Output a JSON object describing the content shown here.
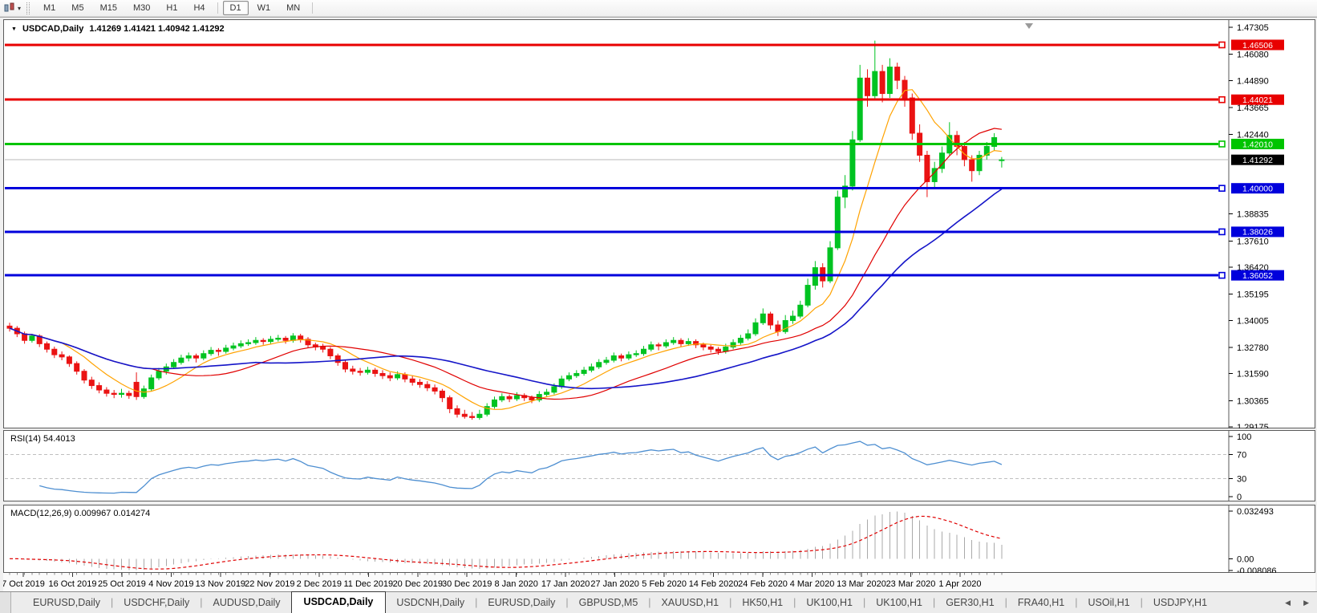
{
  "toolbar": {
    "timeframes": [
      "M1",
      "M5",
      "M15",
      "M30",
      "H1",
      "H4",
      "D1",
      "W1",
      "MN"
    ],
    "active_timeframe": "D1",
    "chart_type_icon": "candlestick-chart-icon"
  },
  "chart_header": {
    "dropdown_caret": "▼",
    "symbol": "USDCAD,Daily",
    "ohlc": "1.41269 1.41421 1.40942 1.41292"
  },
  "price_axis": {
    "ticks": [
      "1.47305",
      "1.46080",
      "1.44890",
      "1.43665",
      "1.42440",
      "1.38835",
      "1.37610",
      "1.36420",
      "1.35195",
      "1.34005",
      "1.32780",
      "1.31590",
      "1.30365",
      "1.29175"
    ]
  },
  "rsi_panel": {
    "label": "RSI(14) 54.4013",
    "ticks": [
      "100",
      "70",
      "30",
      "0"
    ]
  },
  "macd_panel": {
    "label": "MACD(12,26,9) 0.009967 0.014274",
    "ticks": [
      "0.032493",
      "0.00",
      "-0.008086"
    ]
  },
  "date_axis": {
    "labels": [
      "7 Oct 2019",
      "16 Oct 2019",
      "25 Oct 2019",
      "4 Nov 2019",
      "13 Nov 2019",
      "22 Nov 2019",
      "2 Dec 2019",
      "11 Dec 2019",
      "20 Dec 2019",
      "30 Dec 2019",
      "8 Jan 2020",
      "17 Jan 2020",
      "27 Jan 2020",
      "5 Feb 2020",
      "14 Feb 2020",
      "24 Feb 2020",
      "4 Mar 2020",
      "13 Mar 2020",
      "23 Mar 2020",
      "1 Apr 2020"
    ]
  },
  "tab_bar": {
    "scroll_left": "◀",
    "scroll_right": "▶",
    "tabs": [
      {
        "label": "EURUSD,Daily",
        "active": false
      },
      {
        "label": "USDCHF,Daily",
        "active": false
      },
      {
        "label": "AUDUSD,Daily",
        "active": false
      },
      {
        "label": "USDCAD,Daily",
        "active": true
      },
      {
        "label": "USDCNH,Daily",
        "active": false
      },
      {
        "label": "EURUSD,Daily",
        "active": false
      },
      {
        "label": "GBPUSD,M5",
        "active": false
      },
      {
        "label": "XAUUSD,H1",
        "active": false
      },
      {
        "label": "HK50,H1",
        "active": false
      },
      {
        "label": "UK100,H1",
        "active": false
      },
      {
        "label": "UK100,H1",
        "active": false
      },
      {
        "label": "GER30,H1",
        "active": false
      },
      {
        "label": "FRA40,H1",
        "active": false
      },
      {
        "label": "USOil,H1",
        "active": false
      },
      {
        "label": "USDJPY,H1",
        "active": false
      }
    ]
  },
  "chart_data": {
    "type": "candlestick",
    "symbol": "USDCAD",
    "timeframe": "Daily",
    "ohlc_current": {
      "open": 1.41269,
      "high": 1.41421,
      "low": 1.40942,
      "close": 1.41292
    },
    "ylim": [
      1.29,
      1.4766
    ],
    "grid": false,
    "levels": [
      {
        "label": "1.46506",
        "value": 1.46506,
        "color": "#e80000",
        "type": "resistance"
      },
      {
        "label": "1.44021",
        "value": 1.44021,
        "color": "#e80000",
        "type": "resistance"
      },
      {
        "label": "1.42010",
        "value": 1.4201,
        "color": "#00c400",
        "type": "pivot"
      },
      {
        "label": "1.41292",
        "value": 1.41292,
        "color": "#000000",
        "type": "current-price"
      },
      {
        "label": "1.40000",
        "value": 1.4,
        "color": "#0000dc",
        "type": "support"
      },
      {
        "label": "1.38026",
        "value": 1.38026,
        "color": "#0000dc",
        "type": "support"
      },
      {
        "label": "1.36052",
        "value": 1.36052,
        "color": "#0000dc",
        "type": "support"
      }
    ],
    "moving_averages": [
      {
        "name": "fast",
        "period": 8,
        "color": "#ffa200"
      },
      {
        "name": "medium",
        "period": 20,
        "color": "#e00000"
      },
      {
        "name": "slow",
        "period": 34,
        "color": "#1414c8"
      }
    ],
    "candle_colors": {
      "bull": "#00c321",
      "bear": "#ea1313"
    },
    "rsi": {
      "period": 14,
      "current": 54.4013,
      "levels": [
        70,
        30
      ],
      "range": [
        0,
        100
      ],
      "color": "#4e8fd1"
    },
    "macd": {
      "fast": 12,
      "slow": 26,
      "signal_period": 9,
      "current": 0.009967,
      "signal_current": 0.014274,
      "range": [
        -0.008086,
        0.032493
      ],
      "histogram_color": "#a9a9a9",
      "signal_color": "#e00000"
    },
    "candles": [
      [
        1.3375,
        1.339,
        1.335,
        1.3365
      ],
      [
        1.3365,
        1.3375,
        1.3325,
        1.334
      ],
      [
        1.334,
        1.335,
        1.3295,
        1.331
      ],
      [
        1.331,
        1.334,
        1.33,
        1.333
      ],
      [
        1.333,
        1.3338,
        1.328,
        1.3295
      ],
      [
        1.3295,
        1.3305,
        1.3255,
        1.327
      ],
      [
        1.327,
        1.3282,
        1.323,
        1.3245
      ],
      [
        1.3245,
        1.326,
        1.322,
        1.3235
      ],
      [
        1.3235,
        1.3242,
        1.319,
        1.3205
      ],
      [
        1.3205,
        1.3215,
        1.3155,
        1.317
      ],
      [
        1.317,
        1.318,
        1.3115,
        1.313
      ],
      [
        1.313,
        1.3145,
        1.309,
        1.3105
      ],
      [
        1.3105,
        1.312,
        1.307,
        1.3085
      ],
      [
        1.3085,
        1.3098,
        1.3055,
        1.307
      ],
      [
        1.307,
        1.3085,
        1.3048,
        1.3065
      ],
      [
        1.3065,
        1.309,
        1.305,
        1.307
      ],
      [
        1.307,
        1.3082,
        1.3045,
        1.306
      ],
      [
        1.312,
        1.3165,
        1.304,
        1.3055
      ],
      [
        1.3055,
        1.3105,
        1.3045,
        1.309
      ],
      [
        1.309,
        1.3155,
        1.308,
        1.314
      ],
      [
        1.314,
        1.3185,
        1.313,
        1.317
      ],
      [
        1.317,
        1.3205,
        1.3155,
        1.319
      ],
      [
        1.319,
        1.3225,
        1.318,
        1.321
      ],
      [
        1.321,
        1.3245,
        1.32,
        1.323
      ],
      [
        1.323,
        1.3255,
        1.3215,
        1.324
      ],
      [
        1.324,
        1.325,
        1.321,
        1.323
      ],
      [
        1.323,
        1.3265,
        1.322,
        1.325
      ],
      [
        1.325,
        1.328,
        1.324,
        1.3265
      ],
      [
        1.3265,
        1.3275,
        1.324,
        1.326
      ],
      [
        1.326,
        1.329,
        1.325,
        1.3275
      ],
      [
        1.3275,
        1.33,
        1.3265,
        1.3285
      ],
      [
        1.3285,
        1.331,
        1.3275,
        1.3295
      ],
      [
        1.3295,
        1.3315,
        1.3285,
        1.33
      ],
      [
        1.33,
        1.3325,
        1.329,
        1.331
      ],
      [
        1.331,
        1.332,
        1.329,
        1.3305
      ],
      [
        1.3305,
        1.333,
        1.3295,
        1.3315
      ],
      [
        1.3315,
        1.3335,
        1.3305,
        1.332
      ],
      [
        1.332,
        1.333,
        1.3295,
        1.331
      ],
      [
        1.331,
        1.3343,
        1.33,
        1.333
      ],
      [
        1.333,
        1.334,
        1.33,
        1.3315
      ],
      [
        1.3315,
        1.3325,
        1.3275,
        1.329
      ],
      [
        1.329,
        1.33,
        1.3265,
        1.328
      ],
      [
        1.328,
        1.3295,
        1.3255,
        1.327
      ],
      [
        1.327,
        1.328,
        1.3225,
        1.324
      ],
      [
        1.324,
        1.325,
        1.3195,
        1.321
      ],
      [
        1.321,
        1.322,
        1.3165,
        1.318
      ],
      [
        1.318,
        1.3195,
        1.3155,
        1.317
      ],
      [
        1.317,
        1.3185,
        1.315,
        1.3165
      ],
      [
        1.3165,
        1.319,
        1.3155,
        1.3175
      ],
      [
        1.3175,
        1.3185,
        1.3145,
        1.316
      ],
      [
        1.316,
        1.3175,
        1.3135,
        1.315
      ],
      [
        1.315,
        1.3165,
        1.3125,
        1.314
      ],
      [
        1.314,
        1.317,
        1.313,
        1.3155
      ],
      [
        1.3155,
        1.3165,
        1.312,
        1.3135
      ],
      [
        1.3135,
        1.315,
        1.3105,
        1.312
      ],
      [
        1.312,
        1.3135,
        1.3095,
        1.311
      ],
      [
        1.311,
        1.3125,
        1.308,
        1.3095
      ],
      [
        1.3095,
        1.311,
        1.3065,
        1.308
      ],
      [
        1.308,
        1.309,
        1.303,
        1.305
      ],
      [
        1.305,
        1.306,
        1.298,
        1.3
      ],
      [
        1.3,
        1.3015,
        1.296,
        1.2975
      ],
      [
        1.2975,
        1.2995,
        1.2955,
        1.2965
      ],
      [
        1.2965,
        1.2985,
        1.295,
        1.296
      ],
      [
        1.296,
        1.2995,
        1.295,
        1.2975
      ],
      [
        1.2975,
        1.3025,
        1.2965,
        1.301
      ],
      [
        1.301,
        1.3055,
        1.3,
        1.304
      ],
      [
        1.304,
        1.307,
        1.303,
        1.3055
      ],
      [
        1.3055,
        1.3065,
        1.303,
        1.3045
      ],
      [
        1.3045,
        1.3075,
        1.3035,
        1.306
      ],
      [
        1.306,
        1.307,
        1.3035,
        1.305
      ],
      [
        1.305,
        1.306,
        1.3025,
        1.304
      ],
      [
        1.304,
        1.308,
        1.303,
        1.3065
      ],
      [
        1.3065,
        1.309,
        1.3055,
        1.3075
      ],
      [
        1.3075,
        1.3115,
        1.3065,
        1.31
      ],
      [
        1.31,
        1.315,
        1.309,
        1.3135
      ],
      [
        1.3135,
        1.3165,
        1.3125,
        1.315
      ],
      [
        1.315,
        1.3175,
        1.314,
        1.316
      ],
      [
        1.316,
        1.319,
        1.315,
        1.3175
      ],
      [
        1.3175,
        1.3205,
        1.3165,
        1.319
      ],
      [
        1.319,
        1.3225,
        1.318,
        1.321
      ],
      [
        1.321,
        1.3235,
        1.32,
        1.322
      ],
      [
        1.322,
        1.3255,
        1.321,
        1.324
      ],
      [
        1.324,
        1.325,
        1.3215,
        1.323
      ],
      [
        1.323,
        1.326,
        1.322,
        1.3245
      ],
      [
        1.3245,
        1.3265,
        1.3235,
        1.325
      ],
      [
        1.325,
        1.3285,
        1.324,
        1.327
      ],
      [
        1.327,
        1.3305,
        1.326,
        1.329
      ],
      [
        1.329,
        1.33,
        1.3265,
        1.3285
      ],
      [
        1.3285,
        1.3315,
        1.3275,
        1.33
      ],
      [
        1.33,
        1.3325,
        1.329,
        1.331
      ],
      [
        1.331,
        1.332,
        1.328,
        1.3295
      ],
      [
        1.3295,
        1.332,
        1.3285,
        1.3305
      ],
      [
        1.3305,
        1.3315,
        1.3275,
        1.329
      ],
      [
        1.329,
        1.33,
        1.3265,
        1.328
      ],
      [
        1.328,
        1.329,
        1.3255,
        1.327
      ],
      [
        1.327,
        1.328,
        1.3245,
        1.326
      ],
      [
        1.326,
        1.3295,
        1.325,
        1.328
      ],
      [
        1.328,
        1.3315,
        1.327,
        1.33
      ],
      [
        1.33,
        1.3335,
        1.329,
        1.332
      ],
      [
        1.332,
        1.336,
        1.331,
        1.334
      ],
      [
        1.334,
        1.341,
        1.333,
        1.339
      ],
      [
        1.339,
        1.3455,
        1.338,
        1.343
      ],
      [
        1.343,
        1.344,
        1.336,
        1.338
      ],
      [
        1.338,
        1.34,
        1.333,
        1.335
      ],
      [
        1.335,
        1.3425,
        1.334,
        1.34
      ],
      [
        1.34,
        1.3445,
        1.3385,
        1.342
      ],
      [
        1.342,
        1.349,
        1.341,
        1.347
      ],
      [
        1.347,
        1.359,
        1.346,
        1.356
      ],
      [
        1.356,
        1.367,
        1.354,
        1.364
      ],
      [
        1.364,
        1.366,
        1.355,
        1.358
      ],
      [
        1.358,
        1.376,
        1.357,
        1.373
      ],
      [
        1.373,
        1.399,
        1.372,
        1.396
      ],
      [
        1.396,
        1.406,
        1.391,
        1.401
      ],
      [
        1.401,
        1.426,
        1.399,
        1.422
      ],
      [
        1.422,
        1.456,
        1.421,
        1.45
      ],
      [
        1.45,
        1.454,
        1.437,
        1.442
      ],
      [
        1.442,
        1.467,
        1.44,
        1.453
      ],
      [
        1.453,
        1.456,
        1.439,
        1.443
      ],
      [
        1.443,
        1.459,
        1.441,
        1.455
      ],
      [
        1.455,
        1.457,
        1.445,
        1.449
      ],
      [
        1.449,
        1.451,
        1.437,
        1.441
      ],
      [
        1.441,
        1.443,
        1.422,
        1.425
      ],
      [
        1.425,
        1.429,
        1.412,
        1.415
      ],
      [
        1.415,
        1.417,
        1.396,
        1.403
      ],
      [
        1.403,
        1.412,
        1.4,
        1.409
      ],
      [
        1.409,
        1.419,
        1.407,
        1.416
      ],
      [
        1.416,
        1.43,
        1.415,
        1.424
      ],
      [
        1.424,
        1.426,
        1.415,
        1.419
      ],
      [
        1.419,
        1.421,
        1.41,
        1.413
      ],
      [
        1.413,
        1.415,
        1.403,
        1.408
      ],
      [
        1.408,
        1.417,
        1.406,
        1.415
      ],
      [
        1.415,
        1.421,
        1.413,
        1.419
      ],
      [
        1.419,
        1.425,
        1.417,
        1.423
      ],
      [
        1.41269,
        1.41421,
        1.40942,
        1.41292
      ]
    ]
  }
}
